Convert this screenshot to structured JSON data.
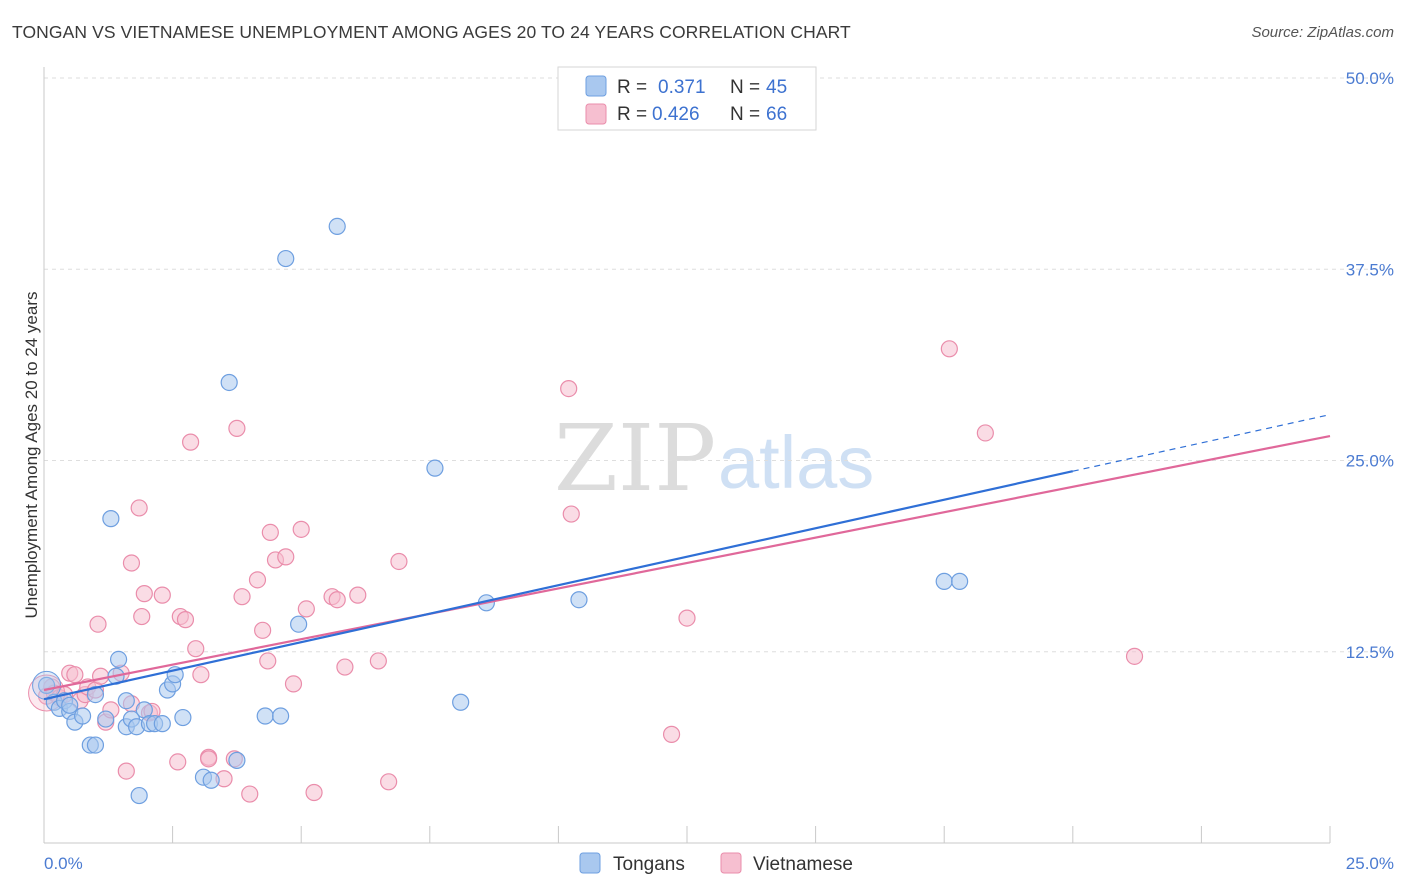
{
  "header": {
    "title": "TONGAN VS VIETNAMESE UNEMPLOYMENT AMONG AGES 20 TO 24 YEARS CORRELATION CHART",
    "source": "Source: ZipAtlas.com"
  },
  "watermark": {
    "part1": "ZIP",
    "part2": "atlas"
  },
  "colors": {
    "tongan_fill": "#a9c8ef",
    "tongan_stroke": "#6e9fe0",
    "tongan_line": "#2f6fd6",
    "viet_fill": "#f6bfd0",
    "viet_stroke": "#ea8dab",
    "viet_line": "#e0689a",
    "grid": "#dedede",
    "tick_text": "#4b7bd1"
  },
  "legend": {
    "rows": [
      {
        "r_label": "R =",
        "r_value": "0.371",
        "n_label": "N =",
        "n_value": "45"
      },
      {
        "r_label": "R =",
        "r_value": "0.426",
        "n_label": "N =",
        "n_value": "66"
      }
    ]
  },
  "bottom_legend": {
    "items": [
      "Tongans",
      "Vietnamese"
    ]
  },
  "chart_data": {
    "type": "scatter",
    "title": "TONGAN VS VIETNAMESE UNEMPLOYMENT AMONG AGES 20 TO 24 YEARS CORRELATION CHART",
    "xlabel": "",
    "ylabel": "Unemployment Among Ages 20 to 24 years",
    "xlim": [
      0,
      25
    ],
    "ylim": [
      0,
      50
    ],
    "x_tick_labels": [
      "0.0%",
      "25.0%"
    ],
    "y_ticks": [
      12.5,
      25.0,
      37.5,
      50.0
    ],
    "y_tick_labels": [
      "12.5%",
      "25.0%",
      "37.5%",
      "50.0%"
    ],
    "series": [
      {
        "name": "Tongans",
        "r": 0.371,
        "n": 45,
        "trend": {
          "x0": 0,
          "y0": 9.4,
          "x1": 20,
          "y1": 24.3,
          "dash_to_x": 25,
          "dash_to_y": 28.0
        },
        "points": [
          [
            0.05,
            10.3
          ],
          [
            0.2,
            9.2
          ],
          [
            0.3,
            8.8
          ],
          [
            0.4,
            9.3
          ],
          [
            0.5,
            8.6
          ],
          [
            0.5,
            9.0
          ],
          [
            0.6,
            7.9
          ],
          [
            0.75,
            8.3
          ],
          [
            0.9,
            6.4
          ],
          [
            1.0,
            9.7
          ],
          [
            1.0,
            6.4
          ],
          [
            1.2,
            8.1
          ],
          [
            1.3,
            21.2
          ],
          [
            1.4,
            10.9
          ],
          [
            1.45,
            12.0
          ],
          [
            1.6,
            7.6
          ],
          [
            1.6,
            9.3
          ],
          [
            1.7,
            8.1
          ],
          [
            1.8,
            7.6
          ],
          [
            1.85,
            3.1
          ],
          [
            1.95,
            8.7
          ],
          [
            2.05,
            7.8
          ],
          [
            2.15,
            7.8
          ],
          [
            2.3,
            7.8
          ],
          [
            2.4,
            10.0
          ],
          [
            2.5,
            10.4
          ],
          [
            2.55,
            11.0
          ],
          [
            2.7,
            8.2
          ],
          [
            3.1,
            4.3
          ],
          [
            3.25,
            4.1
          ],
          [
            3.6,
            30.1
          ],
          [
            3.75,
            5.4
          ],
          [
            4.3,
            8.3
          ],
          [
            4.6,
            8.3
          ],
          [
            4.7,
            38.2
          ],
          [
            4.95,
            14.3
          ],
          [
            5.7,
            40.3
          ],
          [
            7.6,
            24.5
          ],
          [
            8.1,
            9.2
          ],
          [
            8.6,
            15.7
          ],
          [
            10.4,
            15.9
          ],
          [
            17.5,
            17.1
          ],
          [
            17.8,
            17.1
          ]
        ]
      },
      {
        "name": "Vietnamese",
        "r": 0.426,
        "n": 66,
        "trend": {
          "x0": 0,
          "y0": 10.0,
          "x1": 25,
          "y1": 26.6
        },
        "points": [
          [
            0.05,
            9.6
          ],
          [
            0.15,
            10.2
          ],
          [
            0.2,
            9.8
          ],
          [
            0.3,
            9.5
          ],
          [
            0.4,
            9.7
          ],
          [
            0.5,
            11.1
          ],
          [
            0.6,
            11.0
          ],
          [
            0.7,
            9.3
          ],
          [
            0.8,
            9.7
          ],
          [
            0.85,
            10.2
          ],
          [
            1.0,
            10.0
          ],
          [
            1.05,
            14.3
          ],
          [
            1.1,
            10.9
          ],
          [
            1.2,
            7.9
          ],
          [
            1.3,
            8.7
          ],
          [
            1.5,
            11.1
          ],
          [
            1.6,
            4.7
          ],
          [
            1.7,
            9.1
          ],
          [
            1.7,
            18.3
          ],
          [
            1.85,
            21.9
          ],
          [
            1.9,
            14.8
          ],
          [
            1.95,
            16.3
          ],
          [
            2.05,
            8.5
          ],
          [
            2.1,
            8.6
          ],
          [
            2.3,
            16.2
          ],
          [
            2.6,
            5.3
          ],
          [
            2.65,
            14.8
          ],
          [
            2.75,
            14.6
          ],
          [
            2.85,
            26.2
          ],
          [
            2.95,
            12.7
          ],
          [
            3.05,
            11.0
          ],
          [
            3.2,
            5.6
          ],
          [
            3.2,
            5.5
          ],
          [
            3.5,
            4.2
          ],
          [
            3.7,
            5.5
          ],
          [
            3.75,
            27.1
          ],
          [
            3.85,
            16.1
          ],
          [
            4.0,
            3.2
          ],
          [
            4.15,
            17.2
          ],
          [
            4.25,
            13.9
          ],
          [
            4.35,
            11.9
          ],
          [
            4.4,
            20.3
          ],
          [
            4.5,
            18.5
          ],
          [
            4.7,
            18.7
          ],
          [
            4.85,
            10.4
          ],
          [
            5.0,
            20.5
          ],
          [
            5.1,
            15.3
          ],
          [
            5.25,
            3.3
          ],
          [
            5.6,
            16.1
          ],
          [
            5.7,
            15.9
          ],
          [
            5.85,
            11.5
          ],
          [
            6.1,
            16.2
          ],
          [
            6.5,
            11.9
          ],
          [
            6.7,
            4.0
          ],
          [
            6.9,
            18.4
          ],
          [
            10.2,
            29.7
          ],
          [
            10.25,
            21.5
          ],
          [
            12.2,
            7.1
          ],
          [
            12.5,
            14.7
          ],
          [
            17.6,
            32.3
          ],
          [
            18.3,
            26.8
          ],
          [
            21.2,
            12.2
          ]
        ]
      }
    ]
  }
}
